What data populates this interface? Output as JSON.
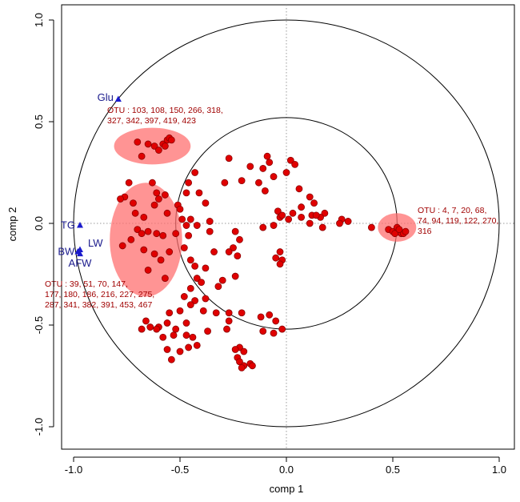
{
  "chart_data": {
    "type": "scatter",
    "title": "",
    "xlabel": "comp 1",
    "ylabel": "comp 2",
    "xlim": [
      -1.05,
      1.02
    ],
    "ylim": [
      -1.05,
      1.05
    ],
    "xticks": [
      -1.0,
      -0.5,
      0.0,
      0.5,
      1.0
    ],
    "yticks": [
      -1.0,
      -0.5,
      0.0,
      0.5,
      1.0
    ],
    "xtick_labels": [
      "-1.0",
      "-0.5",
      "0.0",
      "0.5",
      "1.0"
    ],
    "ytick_labels": [
      "-1.0",
      "-0.5",
      "0.0",
      "0.5",
      "1.0"
    ],
    "circles": [
      {
        "radius": 1.0
      },
      {
        "radius": 0.52
      }
    ],
    "reference_lines": {
      "x": 0.0,
      "y": 0.0,
      "style": "dotted"
    },
    "colors": {
      "points": "#e00000",
      "point_edge": "#8b0000",
      "variables": "#1a1acc",
      "variable_text": "#1a1a8c",
      "cluster_fill": "#ff6b6b",
      "cluster_text": "#a00000"
    },
    "variables": [
      {
        "name": "Glu",
        "x": -0.79,
        "y": 0.61
      },
      {
        "name": "TG",
        "x": -0.97,
        "y": -0.01
      },
      {
        "name": "LW",
        "x": -0.97,
        "y": -0.13
      },
      {
        "name": "BW",
        "x": -0.98,
        "y": -0.14
      },
      {
        "name": "AFW",
        "x": -0.97,
        "y": -0.15
      }
    ],
    "clusters": [
      {
        "cx": -0.63,
        "cy": 0.38,
        "rx": 0.18,
        "ry": 0.09,
        "lines": [
          "OTU : 103, 108, 150, 266, 318,",
          "327, 342, 397, 419, 423"
        ]
      },
      {
        "cx": -0.66,
        "cy": -0.08,
        "rx": 0.17,
        "ry": 0.28,
        "lines": [
          "OTU : 39, 51, 70, 147,",
          "177, 180, 186, 216, 227, 275,",
          "287, 341, 382, 391, 453, 467"
        ]
      },
      {
        "cx": 0.52,
        "cy": -0.02,
        "rx": 0.09,
        "ry": 0.07,
        "lines": [
          "OTU : 4, 7, 20, 68,",
          "74, 94, 119, 122, 270,",
          "316"
        ]
      }
    ],
    "points": [
      [
        -0.7,
        0.4
      ],
      [
        -0.65,
        0.39
      ],
      [
        -0.62,
        0.38
      ],
      [
        -0.58,
        0.39
      ],
      [
        -0.56,
        0.41
      ],
      [
        -0.55,
        0.42
      ],
      [
        -0.54,
        0.41
      ],
      [
        -0.6,
        0.36
      ],
      [
        -0.68,
        0.33
      ],
      [
        -0.57,
        0.38
      ],
      [
        -0.74,
        0.2
      ],
      [
        -0.76,
        0.13
      ],
      [
        -0.78,
        0.12
      ],
      [
        -0.72,
        0.1
      ],
      [
        -0.71,
        0.05
      ],
      [
        -0.67,
        0.03
      ],
      [
        -0.63,
        0.2
      ],
      [
        -0.61,
        0.15
      ],
      [
        -0.6,
        0.12
      ],
      [
        -0.57,
        0.14
      ],
      [
        -0.62,
        0.09
      ],
      [
        -0.56,
        0.05
      ],
      [
        -0.7,
        -0.03
      ],
      [
        -0.68,
        -0.05
      ],
      [
        -0.65,
        -0.04
      ],
      [
        -0.61,
        -0.05
      ],
      [
        -0.58,
        -0.06
      ],
      [
        -0.73,
        -0.08
      ],
      [
        -0.77,
        -0.11
      ],
      [
        -0.67,
        -0.13
      ],
      [
        -0.62,
        -0.15
      ],
      [
        -0.59,
        -0.18
      ],
      [
        -0.55,
        -0.14
      ],
      [
        -0.52,
        -0.05
      ],
      [
        -0.65,
        -0.23
      ],
      [
        -0.57,
        -0.27
      ],
      [
        -0.51,
        0.09
      ],
      [
        -0.5,
        0.07
      ],
      [
        -0.45,
        0.02
      ],
      [
        -0.49,
        0.02
      ],
      [
        -0.47,
        -0.01
      ],
      [
        -0.46,
        -0.06
      ],
      [
        -0.42,
        -0.01
      ],
      [
        -0.48,
        -0.12
      ],
      [
        -0.45,
        -0.18
      ],
      [
        -0.43,
        -0.21
      ],
      [
        -0.38,
        -0.22
      ],
      [
        -0.42,
        -0.27
      ],
      [
        -0.4,
        -0.29
      ],
      [
        -0.45,
        -0.32
      ],
      [
        -0.48,
        -0.36
      ],
      [
        -0.36,
        -0.04
      ],
      [
        -0.34,
        -0.14
      ],
      [
        -0.38,
        0.1
      ],
      [
        -0.36,
        0.01
      ],
      [
        -0.41,
        0.15
      ],
      [
        -0.47,
        0.15
      ],
      [
        -0.46,
        0.2
      ],
      [
        -0.43,
        0.25
      ],
      [
        -0.29,
        0.2
      ],
      [
        -0.27,
        0.32
      ],
      [
        -0.21,
        0.21
      ],
      [
        -0.17,
        0.28
      ],
      [
        -0.13,
        0.2
      ],
      [
        -0.11,
        0.27
      ],
      [
        -0.06,
        0.23
      ],
      [
        -0.09,
        0.33
      ],
      [
        -0.08,
        0.3
      ],
      [
        -0.1,
        0.16
      ],
      [
        0.02,
        0.31
      ],
      [
        0.04,
        0.29
      ],
      [
        0.0,
        0.25
      ],
      [
        0.06,
        0.17
      ],
      [
        0.11,
        0.13
      ],
      [
        0.13,
        0.1
      ],
      [
        0.18,
        0.05
      ],
      [
        0.12,
        0.04
      ],
      [
        0.16,
        0.03
      ],
      [
        0.26,
        0.02
      ],
      [
        0.07,
        0.08
      ],
      [
        0.03,
        0.05
      ],
      [
        -0.04,
        0.06
      ],
      [
        -0.03,
        0.03
      ],
      [
        0.01,
        0.02
      ],
      [
        -0.06,
        -0.01
      ],
      [
        0.25,
        0.0
      ],
      [
        0.29,
        0.01
      ],
      [
        0.07,
        0.03
      ],
      [
        0.11,
        0.0
      ],
      [
        0.14,
        0.04
      ],
      [
        0.17,
        -0.02
      ],
      [
        -0.02,
        0.04
      ],
      [
        -0.24,
        -0.04
      ],
      [
        -0.22,
        -0.08
      ],
      [
        -0.25,
        -0.12
      ],
      [
        -0.27,
        -0.14
      ],
      [
        -0.23,
        -0.16
      ],
      [
        -0.11,
        -0.02
      ],
      [
        -0.05,
        -0.17
      ],
      [
        -0.03,
        -0.14
      ],
      [
        -0.02,
        -0.18
      ],
      [
        -0.03,
        -0.2
      ],
      [
        -0.24,
        -0.26
      ],
      [
        -0.3,
        -0.28
      ],
      [
        -0.32,
        -0.31
      ],
      [
        -0.33,
        -0.44
      ],
      [
        -0.38,
        -0.37
      ],
      [
        -0.39,
        -0.43
      ],
      [
        -0.43,
        -0.38
      ],
      [
        -0.45,
        -0.4
      ],
      [
        -0.5,
        -0.43
      ],
      [
        -0.55,
        -0.44
      ],
      [
        -0.56,
        -0.49
      ],
      [
        -0.6,
        -0.51
      ],
      [
        -0.52,
        -0.52
      ],
      [
        -0.47,
        -0.49
      ],
      [
        -0.47,
        -0.55
      ],
      [
        -0.44,
        -0.56
      ],
      [
        -0.42,
        -0.6
      ],
      [
        -0.46,
        -0.61
      ],
      [
        -0.5,
        -0.63
      ],
      [
        -0.56,
        -0.62
      ],
      [
        -0.58,
        -0.56
      ],
      [
        -0.61,
        -0.52
      ],
      [
        -0.66,
        -0.48
      ],
      [
        -0.68,
        -0.52
      ],
      [
        -0.64,
        -0.51
      ],
      [
        -0.53,
        -0.55
      ],
      [
        -0.54,
        -0.67
      ],
      [
        -0.37,
        -0.53
      ],
      [
        -0.22,
        -0.61
      ],
      [
        -0.2,
        -0.63
      ],
      [
        -0.24,
        -0.62
      ],
      [
        -0.23,
        -0.66
      ],
      [
        -0.22,
        -0.68
      ],
      [
        -0.2,
        -0.7
      ],
      [
        -0.21,
        -0.71
      ],
      [
        -0.17,
        -0.69
      ],
      [
        -0.16,
        -0.7
      ],
      [
        -0.11,
        -0.53
      ],
      [
        -0.06,
        -0.54
      ],
      [
        -0.02,
        -0.52
      ],
      [
        -0.27,
        -0.44
      ],
      [
        -0.27,
        -0.48
      ],
      [
        -0.28,
        -0.52
      ],
      [
        -0.21,
        -0.44
      ],
      [
        -0.12,
        -0.46
      ],
      [
        -0.08,
        -0.45
      ],
      [
        -0.05,
        -0.48
      ],
      [
        0.4,
        -0.02
      ],
      [
        0.48,
        -0.03
      ],
      [
        0.5,
        -0.04
      ],
      [
        0.52,
        -0.02
      ],
      [
        0.53,
        -0.04
      ],
      [
        0.54,
        -0.05
      ],
      [
        0.55,
        -0.05
      ],
      [
        0.56,
        -0.04
      ],
      [
        0.51,
        -0.05
      ],
      [
        0.53,
        -0.03
      ]
    ]
  }
}
